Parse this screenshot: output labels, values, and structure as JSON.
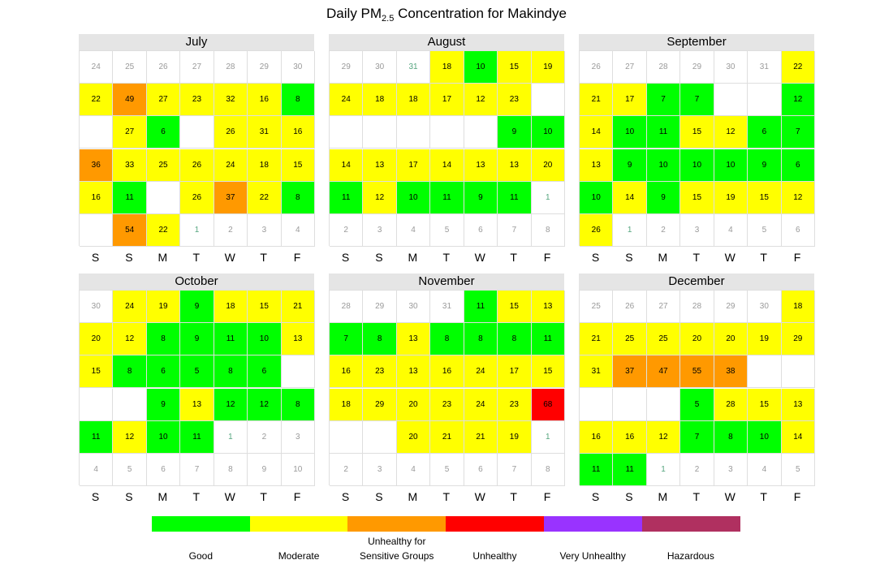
{
  "title": {
    "prefix": "Daily PM",
    "subscript": "2.5",
    "suffix": " Concentration for Makindye"
  },
  "chart_data": {
    "type": "heatmap",
    "subtype": "calendar",
    "title": "Daily PM2.5 Concentration for Makindye",
    "weekday_labels": [
      "S",
      "S",
      "M",
      "T",
      "W",
      "T",
      "F"
    ],
    "colors": {
      "Good": "#00ff00",
      "Moderate": "#ffff00",
      "Unhealthy for Sensitive Groups": "#ff9900",
      "Unhealthy": "#ff0000",
      "Very Unhealthy": "#9933ff",
      "Hazardous": "#b03060",
      "empty": "#ffffff"
    },
    "legend": [
      {
        "label": "Good",
        "color": "#00ff00"
      },
      {
        "label": "Moderate",
        "color": "#ffff00"
      },
      {
        "label": "Unhealthy for\nSensitive Groups",
        "color": "#ff9900"
      },
      {
        "label": "Unhealthy",
        "color": "#ff0000"
      },
      {
        "label": "Very Unhealthy",
        "color": "#9933ff"
      },
      {
        "label": "Hazardous",
        "color": "#b03060"
      }
    ],
    "months": [
      {
        "name": "July",
        "rows": [
          [
            [
              "24",
              "o"
            ],
            [
              "25",
              "o"
            ],
            [
              "26",
              "o"
            ],
            [
              "27",
              "o"
            ],
            [
              "28",
              "o"
            ],
            [
              "29",
              "o"
            ],
            [
              "30",
              "o"
            ]
          ],
          [
            [
              "22",
              "M"
            ],
            [
              "49",
              "U"
            ],
            [
              "27",
              "M"
            ],
            [
              "23",
              "M"
            ],
            [
              "32",
              "M"
            ],
            [
              "16",
              "M"
            ],
            [
              "8",
              "G"
            ]
          ],
          [
            [
              "",
              "E"
            ],
            [
              "27",
              "M"
            ],
            [
              "6",
              "G"
            ],
            [
              "",
              "E"
            ],
            [
              "26",
              "M"
            ],
            [
              "31",
              "M"
            ],
            [
              "16",
              "M"
            ]
          ],
          [
            [
              "36",
              "U"
            ],
            [
              "33",
              "M"
            ],
            [
              "25",
              "M"
            ],
            [
              "26",
              "M"
            ],
            [
              "24",
              "M"
            ],
            [
              "18",
              "M"
            ],
            [
              "15",
              "M"
            ]
          ],
          [
            [
              "16",
              "M"
            ],
            [
              "11",
              "G"
            ],
            [
              "",
              "E"
            ],
            [
              "26",
              "M"
            ],
            [
              "37",
              "U"
            ],
            [
              "22",
              "M"
            ],
            [
              "8",
              "G"
            ]
          ],
          [
            [
              "",
              "E"
            ],
            [
              "54",
              "U"
            ],
            [
              "22",
              "M"
            ],
            [
              "1",
              "o"
            ],
            [
              "2",
              "o"
            ],
            [
              "3",
              "o"
            ],
            [
              "4",
              "o"
            ]
          ]
        ]
      },
      {
        "name": "August",
        "rows": [
          [
            [
              "29",
              "o"
            ],
            [
              "30",
              "o"
            ],
            [
              "31",
              "o"
            ],
            [
              "18",
              "M"
            ],
            [
              "10",
              "G"
            ],
            [
              "15",
              "M"
            ],
            [
              "19",
              "M"
            ]
          ],
          [
            [
              "24",
              "M"
            ],
            [
              "18",
              "M"
            ],
            [
              "18",
              "M"
            ],
            [
              "17",
              "M"
            ],
            [
              "12",
              "M"
            ],
            [
              "23",
              "M"
            ],
            [
              "",
              "E"
            ]
          ],
          [
            [
              "",
              "E"
            ],
            [
              "",
              "E"
            ],
            [
              "",
              "E"
            ],
            [
              "",
              "E"
            ],
            [
              "",
              "E"
            ],
            [
              "9",
              "G"
            ],
            [
              "10",
              "G"
            ]
          ],
          [
            [
              "14",
              "M"
            ],
            [
              "13",
              "M"
            ],
            [
              "17",
              "M"
            ],
            [
              "14",
              "M"
            ],
            [
              "13",
              "M"
            ],
            [
              "13",
              "M"
            ],
            [
              "20",
              "M"
            ]
          ],
          [
            [
              "11",
              "G"
            ],
            [
              "12",
              "M"
            ],
            [
              "10",
              "G"
            ],
            [
              "11",
              "G"
            ],
            [
              "9",
              "G"
            ],
            [
              "11",
              "G"
            ],
            [
              "1",
              "o"
            ]
          ],
          [
            [
              "2",
              "o"
            ],
            [
              "3",
              "o"
            ],
            [
              "4",
              "o"
            ],
            [
              "5",
              "o"
            ],
            [
              "6",
              "o"
            ],
            [
              "7",
              "o"
            ],
            [
              "8",
              "o"
            ]
          ]
        ]
      },
      {
        "name": "September",
        "rows": [
          [
            [
              "26",
              "o"
            ],
            [
              "27",
              "o"
            ],
            [
              "28",
              "o"
            ],
            [
              "29",
              "o"
            ],
            [
              "30",
              "o"
            ],
            [
              "31",
              "o"
            ],
            [
              "22",
              "M"
            ]
          ],
          [
            [
              "21",
              "M"
            ],
            [
              "17",
              "M"
            ],
            [
              "7",
              "G"
            ],
            [
              "7",
              "G"
            ],
            [
              "",
              "E"
            ],
            [
              "",
              "E"
            ],
            [
              "12",
              "G"
            ]
          ],
          [
            [
              "14",
              "M"
            ],
            [
              "10",
              "G"
            ],
            [
              "11",
              "G"
            ],
            [
              "15",
              "M"
            ],
            [
              "12",
              "M"
            ],
            [
              "6",
              "G"
            ],
            [
              "7",
              "G"
            ]
          ],
          [
            [
              "13",
              "M"
            ],
            [
              "9",
              "G"
            ],
            [
              "10",
              "G"
            ],
            [
              "10",
              "G"
            ],
            [
              "10",
              "G"
            ],
            [
              "9",
              "G"
            ],
            [
              "6",
              "G"
            ]
          ],
          [
            [
              "10",
              "G"
            ],
            [
              "14",
              "M"
            ],
            [
              "9",
              "G"
            ],
            [
              "15",
              "M"
            ],
            [
              "19",
              "M"
            ],
            [
              "15",
              "M"
            ],
            [
              "12",
              "M"
            ]
          ],
          [
            [
              "26",
              "M"
            ],
            [
              "1",
              "o"
            ],
            [
              "2",
              "o"
            ],
            [
              "3",
              "o"
            ],
            [
              "4",
              "o"
            ],
            [
              "5",
              "o"
            ],
            [
              "6",
              "o"
            ]
          ]
        ]
      },
      {
        "name": "October",
        "rows": [
          [
            [
              "30",
              "o"
            ],
            [
              "24",
              "M"
            ],
            [
              "19",
              "M"
            ],
            [
              "9",
              "G"
            ],
            [
              "18",
              "M"
            ],
            [
              "15",
              "M"
            ],
            [
              "21",
              "M"
            ]
          ],
          [
            [
              "20",
              "M"
            ],
            [
              "12",
              "M"
            ],
            [
              "8",
              "G"
            ],
            [
              "9",
              "G"
            ],
            [
              "11",
              "G"
            ],
            [
              "10",
              "G"
            ],
            [
              "13",
              "M"
            ]
          ],
          [
            [
              "15",
              "M"
            ],
            [
              "8",
              "G"
            ],
            [
              "6",
              "G"
            ],
            [
              "5",
              "G"
            ],
            [
              "8",
              "G"
            ],
            [
              "6",
              "G"
            ],
            [
              "",
              "E"
            ]
          ],
          [
            [
              "",
              "E"
            ],
            [
              "",
              "E"
            ],
            [
              "9",
              "G"
            ],
            [
              "13",
              "M"
            ],
            [
              "12",
              "G"
            ],
            [
              "12",
              "G"
            ],
            [
              "8",
              "G"
            ]
          ],
          [
            [
              "11",
              "G"
            ],
            [
              "12",
              "M"
            ],
            [
              "10",
              "G"
            ],
            [
              "11",
              "G"
            ],
            [
              "1",
              "o"
            ],
            [
              "2",
              "o"
            ],
            [
              "3",
              "o"
            ]
          ],
          [
            [
              "4",
              "o"
            ],
            [
              "5",
              "o"
            ],
            [
              "6",
              "o"
            ],
            [
              "7",
              "o"
            ],
            [
              "8",
              "o"
            ],
            [
              "9",
              "o"
            ],
            [
              "10",
              "o"
            ]
          ]
        ]
      },
      {
        "name": "November",
        "rows": [
          [
            [
              "28",
              "o"
            ],
            [
              "29",
              "o"
            ],
            [
              "30",
              "o"
            ],
            [
              "31",
              "o"
            ],
            [
              "11",
              "G"
            ],
            [
              "15",
              "M"
            ],
            [
              "13",
              "M"
            ]
          ],
          [
            [
              "7",
              "G"
            ],
            [
              "8",
              "G"
            ],
            [
              "13",
              "M"
            ],
            [
              "8",
              "G"
            ],
            [
              "8",
              "G"
            ],
            [
              "8",
              "G"
            ],
            [
              "11",
              "G"
            ]
          ],
          [
            [
              "16",
              "M"
            ],
            [
              "23",
              "M"
            ],
            [
              "13",
              "M"
            ],
            [
              "16",
              "M"
            ],
            [
              "24",
              "M"
            ],
            [
              "17",
              "M"
            ],
            [
              "15",
              "M"
            ]
          ],
          [
            [
              "18",
              "M"
            ],
            [
              "29",
              "M"
            ],
            [
              "20",
              "M"
            ],
            [
              "23",
              "M"
            ],
            [
              "24",
              "M"
            ],
            [
              "23",
              "M"
            ],
            [
              "68",
              "R"
            ]
          ],
          [
            [
              "",
              "E"
            ],
            [
              "",
              "E"
            ],
            [
              "20",
              "M"
            ],
            [
              "21",
              "M"
            ],
            [
              "21",
              "M"
            ],
            [
              "19",
              "M"
            ],
            [
              "1",
              "o"
            ]
          ],
          [
            [
              "2",
              "o"
            ],
            [
              "3",
              "o"
            ],
            [
              "4",
              "o"
            ],
            [
              "5",
              "o"
            ],
            [
              "6",
              "o"
            ],
            [
              "7",
              "o"
            ],
            [
              "8",
              "o"
            ]
          ]
        ]
      },
      {
        "name": "December",
        "rows": [
          [
            [
              "25",
              "o"
            ],
            [
              "26",
              "o"
            ],
            [
              "27",
              "o"
            ],
            [
              "28",
              "o"
            ],
            [
              "29",
              "o"
            ],
            [
              "30",
              "o"
            ],
            [
              "18",
              "M"
            ]
          ],
          [
            [
              "21",
              "M"
            ],
            [
              "25",
              "M"
            ],
            [
              "25",
              "M"
            ],
            [
              "20",
              "M"
            ],
            [
              "20",
              "M"
            ],
            [
              "19",
              "M"
            ],
            [
              "29",
              "M"
            ]
          ],
          [
            [
              "31",
              "M"
            ],
            [
              "37",
              "U"
            ],
            [
              "47",
              "U"
            ],
            [
              "55",
              "U"
            ],
            [
              "38",
              "U"
            ],
            [
              "",
              "E"
            ],
            [
              "",
              "E"
            ]
          ],
          [
            [
              "",
              "E"
            ],
            [
              "",
              "E"
            ],
            [
              "",
              "E"
            ],
            [
              "5",
              "G"
            ],
            [
              "28",
              "M"
            ],
            [
              "15",
              "M"
            ],
            [
              "13",
              "M"
            ]
          ],
          [
            [
              "16",
              "M"
            ],
            [
              "16",
              "M"
            ],
            [
              "12",
              "M"
            ],
            [
              "7",
              "G"
            ],
            [
              "8",
              "G"
            ],
            [
              "10",
              "G"
            ],
            [
              "14",
              "M"
            ]
          ],
          [
            [
              "11",
              "G"
            ],
            [
              "11",
              "G"
            ],
            [
              "1",
              "o"
            ],
            [
              "2",
              "o"
            ],
            [
              "3",
              "o"
            ],
            [
              "4",
              "o"
            ],
            [
              "5",
              "o"
            ]
          ]
        ]
      }
    ]
  }
}
